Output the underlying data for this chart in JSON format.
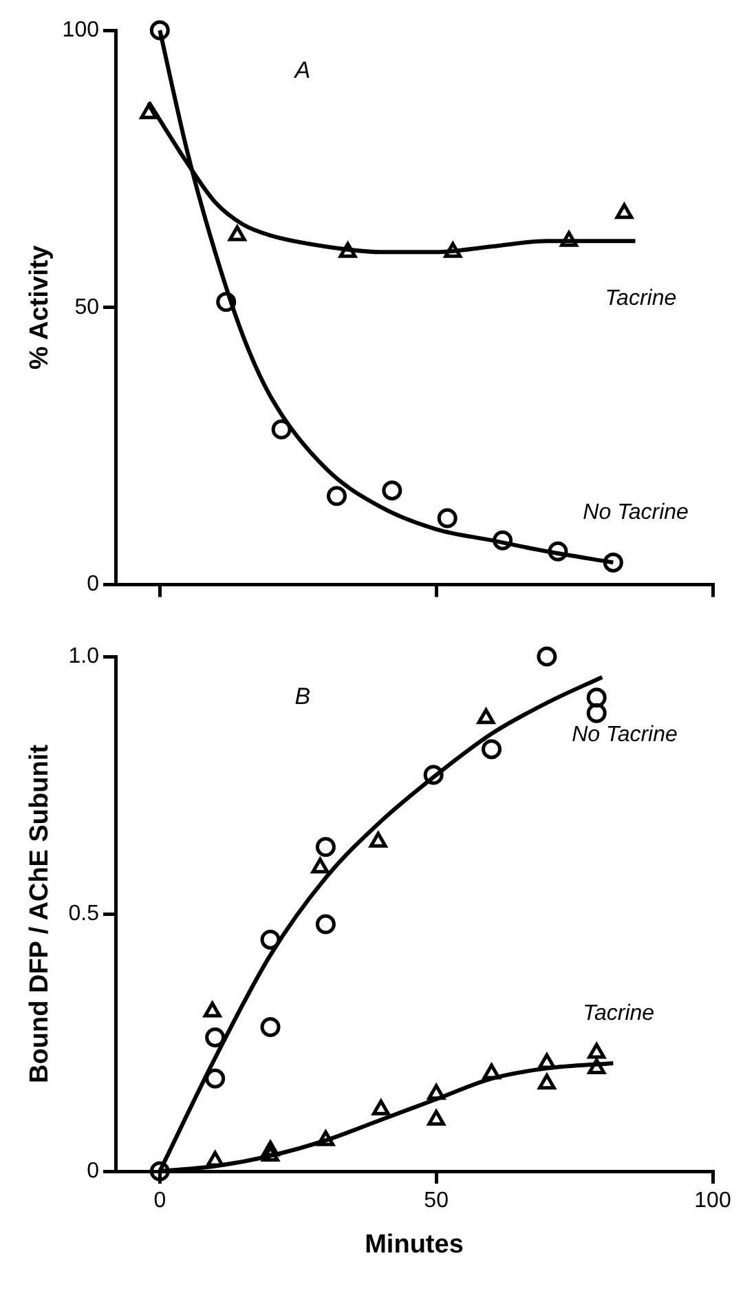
{
  "chart_data": [
    {
      "type": "scatter",
      "title": "A",
      "ylabel": "% Activity",
      "xlim": [
        -8,
        100
      ],
      "xticks": [
        {
          "value": 0,
          "label": null
        },
        {
          "value": 50,
          "label": null
        },
        {
          "value": 100,
          "label": null
        }
      ],
      "ylim": [
        0,
        100
      ],
      "yticks": [
        0,
        50,
        100
      ],
      "tick_labels": "y",
      "grid": false,
      "legend": false,
      "series": [
        {
          "type": "scatter",
          "marker": "circle",
          "color": "#000000",
          "x": [
            0,
            12,
            22,
            32,
            42,
            52,
            62,
            72,
            82
          ],
          "values": [
            100,
            51,
            28,
            16,
            17,
            12,
            8,
            6,
            4
          ]
        },
        {
          "type": "scatter",
          "marker": "triangle",
          "color": "#000000",
          "x": [
            -2,
            14,
            34,
            53,
            74,
            84
          ],
          "values": [
            85,
            63,
            60,
            60,
            62,
            67
          ]
        },
        {
          "type": "line",
          "name": "No Tacrine",
          "marker": "none",
          "color": "#000000",
          "x": [
            0,
            5,
            10,
            15,
            20,
            30,
            40,
            50,
            60,
            70,
            82
          ],
          "values": [
            100,
            78,
            60,
            45,
            34,
            21,
            14,
            10,
            8,
            6,
            4
          ]
        },
        {
          "type": "line",
          "name": "Tacrine",
          "marker": "none",
          "color": "#000000",
          "x": [
            -2,
            5,
            10,
            15,
            20,
            30,
            40,
            50,
            60,
            70,
            86
          ],
          "values": [
            87,
            76,
            69,
            65,
            63,
            61,
            60,
            60,
            61,
            62,
            62
          ]
        }
      ]
    },
    {
      "type": "scatter",
      "title": "B",
      "xlabel": "Minutes",
      "ylabel": "Bound DFP / AChE Subunit",
      "xlim": [
        -8,
        100
      ],
      "xticks": [
        0,
        50,
        100
      ],
      "ylim": [
        0,
        1
      ],
      "yticks": [
        0,
        0.5,
        {
          "value": 1,
          "label": "1.0"
        }
      ],
      "grid": false,
      "legend": false,
      "series": [
        {
          "type": "scatter",
          "marker": "circle",
          "color": "#000000",
          "x": [
            0,
            10,
            20,
            30,
            49.5,
            70,
            79
          ],
          "values": [
            0,
            0.18,
            0.28,
            0.63,
            0.77,
            1.0,
            0.89
          ]
        },
        {
          "type": "scatter",
          "marker": "circle",
          "color": "#000000",
          "x": [
            10,
            20,
            30,
            60,
            79
          ],
          "values": [
            0.26,
            0.45,
            0.48,
            0.82,
            0.92
          ]
        },
        {
          "type": "scatter",
          "marker": "triangle",
          "color": "#000000",
          "x": [
            9.5,
            29,
            39.5,
            59
          ],
          "values": [
            0.31,
            0.59,
            0.64,
            0.88
          ]
        },
        {
          "type": "scatter",
          "marker": "triangle",
          "color": "#000000",
          "x": [
            10,
            20,
            40,
            50,
            60,
            70,
            79
          ],
          "values": [
            0.02,
            0.04,
            0.12,
            0.15,
            0.19,
            0.17,
            0.2
          ]
        },
        {
          "type": "scatter",
          "marker": "triangle",
          "color": "#000000",
          "x": [
            20,
            30,
            50,
            70,
            79
          ],
          "values": [
            0.03,
            0.06,
            0.1,
            0.21,
            0.23
          ]
        },
        {
          "type": "line",
          "name": "No Tacrine",
          "marker": "none",
          "color": "#000000",
          "x": [
            0,
            10,
            20,
            30,
            40,
            50,
            60,
            70,
            80
          ],
          "values": [
            0,
            0.22,
            0.42,
            0.57,
            0.68,
            0.77,
            0.85,
            0.91,
            0.96
          ]
        },
        {
          "type": "line",
          "name": "Tacrine",
          "marker": "none",
          "color": "#000000",
          "x": [
            0,
            10,
            20,
            30,
            40,
            50,
            60,
            70,
            82
          ],
          "values": [
            0,
            0.01,
            0.03,
            0.06,
            0.1,
            0.14,
            0.18,
            0.2,
            0.21
          ]
        }
      ]
    }
  ]
}
